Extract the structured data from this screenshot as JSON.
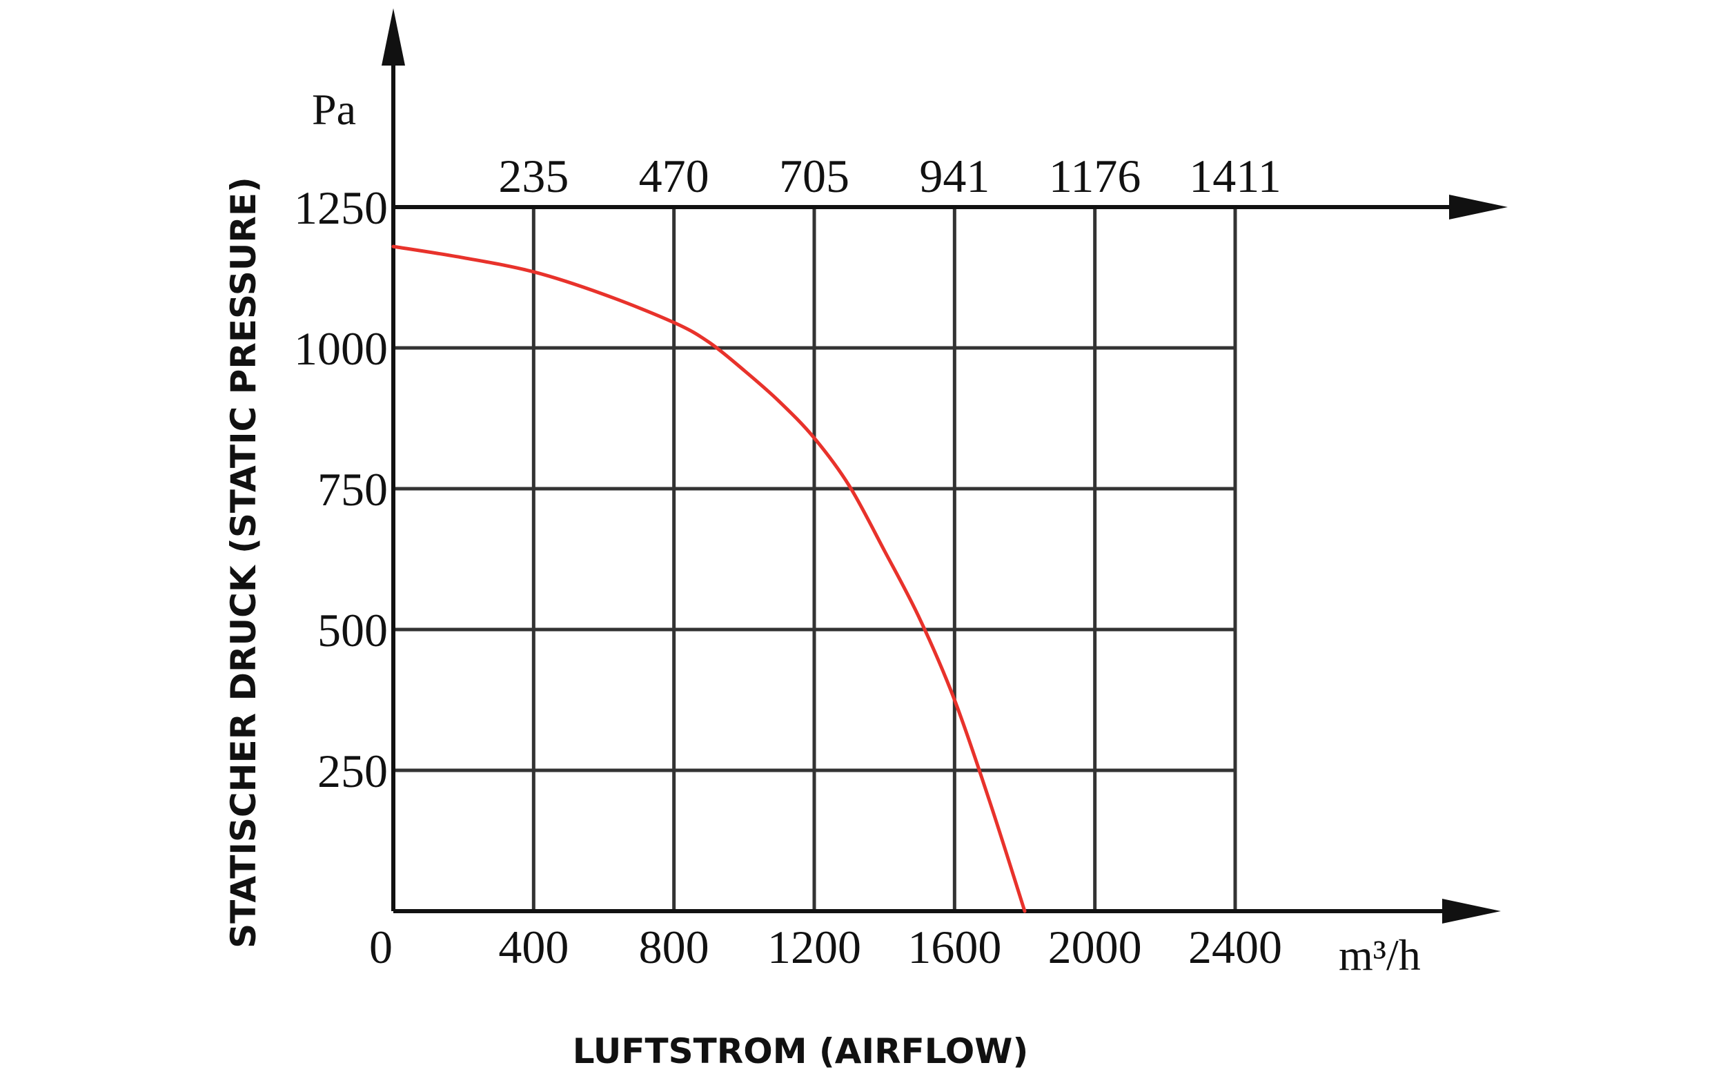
{
  "chart_data": {
    "type": "line",
    "title": "",
    "xlabel": "LUFTSTROM (AIRFLOW)",
    "ylabel": "STATISCHER DRUCK (STATIC PRESSURE)",
    "x_unit": "m³/h",
    "y_unit": "Pa",
    "xlim": [
      0,
      2400
    ],
    "ylim": [
      0,
      1250
    ],
    "x_ticks": [
      "0",
      "400",
      "800",
      "1200",
      "1600",
      "2000",
      "2400"
    ],
    "x_tick_values": [
      0,
      400,
      800,
      1200,
      1600,
      2000,
      2400
    ],
    "x_ticks_top": [
      "235",
      "470",
      "705",
      "941",
      "1176",
      "1411"
    ],
    "y_ticks": [
      "250",
      "500",
      "750",
      "1000",
      "1250"
    ],
    "y_tick_values": [
      250,
      500,
      750,
      1000,
      1250
    ],
    "grid": true,
    "series": [
      {
        "color": "#e8322b",
        "x": [
          0,
          200,
          400,
          600,
          800,
          900,
          1000,
          1100,
          1200,
          1300,
          1400,
          1500,
          1600,
          1700,
          1800
        ],
        "y": [
          1180,
          1160,
          1135,
          1095,
          1045,
          1010,
          960,
          905,
          840,
          755,
          640,
          520,
          375,
          195,
          0
        ]
      }
    ]
  }
}
